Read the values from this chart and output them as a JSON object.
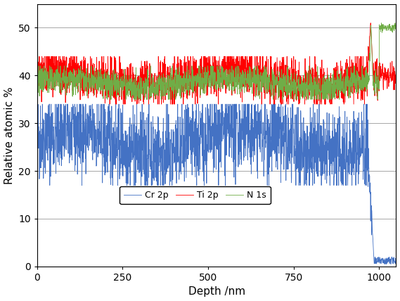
{
  "title": "",
  "xlabel": "Depth /nm",
  "ylabel": "Relative atomic %",
  "xlim": [
    0,
    1050
  ],
  "ylim": [
    0,
    55
  ],
  "yticks": [
    0,
    10,
    20,
    30,
    40,
    50
  ],
  "xticks": [
    0,
    250,
    500,
    750,
    1000
  ],
  "legend": [
    {
      "label": "Cr 2p",
      "color": "#4472C4"
    },
    {
      "label": "Ti 2p",
      "color": "#FF0000"
    },
    {
      "label": "N 1s",
      "color": "#70AD47"
    }
  ],
  "grid_color": "#999999",
  "bg_color": "#FFFFFF",
  "seed": 42,
  "n_points": 2000,
  "depth_max": 1000,
  "depth_tail_end": 1050
}
